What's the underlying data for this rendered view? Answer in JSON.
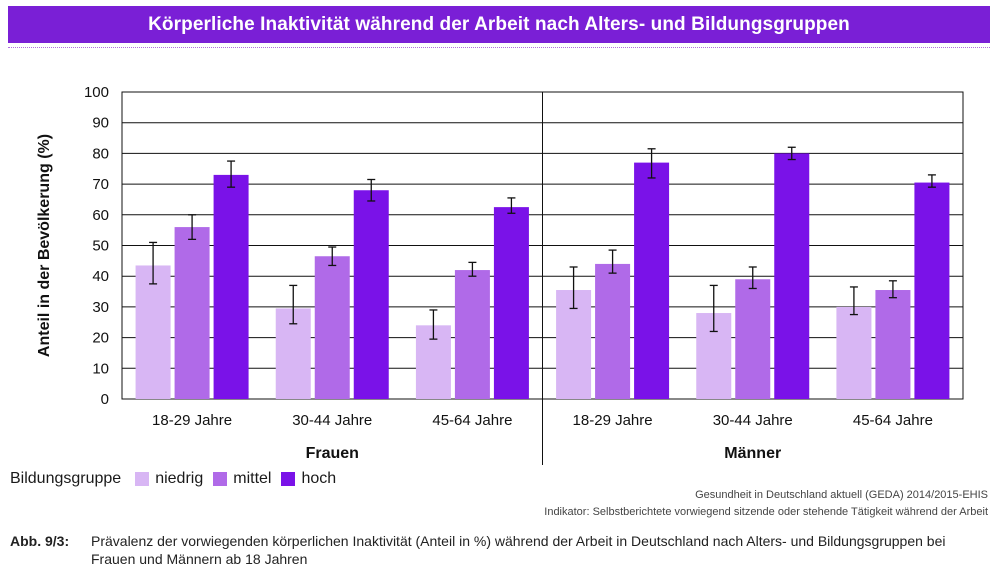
{
  "title": "Körperliche Inaktivität während der Arbeit nach Alters- und Bildungsgruppen",
  "chart_data": {
    "type": "bar",
    "ylabel": "Anteil in der Bevölkerung (%)",
    "ylim": [
      0,
      100
    ],
    "yticks": [
      0,
      10,
      20,
      30,
      40,
      50,
      60,
      70,
      80,
      90,
      100
    ],
    "grid": true,
    "groups": [
      {
        "name": "Frauen",
        "categories": [
          "18-29 Jahre",
          "30-44 Jahre",
          "45-64 Jahre"
        ],
        "series": [
          {
            "name": "niedrig",
            "values": [
              43.5,
              29.5,
              24
            ],
            "err_low": [
              37.5,
              24.5,
              19.5
            ],
            "err_high": [
              51,
              37,
              29
            ]
          },
          {
            "name": "mittel",
            "values": [
              56,
              46.5,
              42
            ],
            "err_low": [
              52,
              43.5,
              40
            ],
            "err_high": [
              60,
              49.5,
              44.5
            ]
          },
          {
            "name": "hoch",
            "values": [
              73,
              68,
              62.5
            ],
            "err_low": [
              69,
              64.5,
              60.5
            ],
            "err_high": [
              77.5,
              71.5,
              65.5
            ]
          }
        ]
      },
      {
        "name": "Männer",
        "categories": [
          "18-29 Jahre",
          "30-44 Jahre",
          "45-64 Jahre"
        ],
        "series": [
          {
            "name": "niedrig",
            "values": [
              35.5,
              28,
              30
            ],
            "err_low": [
              29.5,
              22,
              27.5
            ],
            "err_high": [
              43,
              37,
              36.5
            ]
          },
          {
            "name": "mittel",
            "values": [
              44,
              39,
              35.5
            ],
            "err_low": [
              41,
              36,
              33
            ],
            "err_high": [
              48.5,
              43,
              38.5
            ]
          },
          {
            "name": "hoch",
            "values": [
              77,
              80,
              70.5
            ],
            "err_low": [
              72,
              78,
              69
            ],
            "err_high": [
              81.5,
              82,
              73
            ]
          }
        ]
      }
    ],
    "colors": {
      "niedrig": "#d8b6f4",
      "mittel": "#b06ae8",
      "hoch": "#7a12e8"
    }
  },
  "legend": {
    "title": "Bildungsgruppe",
    "items": [
      {
        "label": "niedrig",
        "color": "#d8b6f4"
      },
      {
        "label": "mittel",
        "color": "#b06ae8"
      },
      {
        "label": "hoch",
        "color": "#7a12e8"
      }
    ]
  },
  "source": {
    "line1": "Gesundheit in Deutschland aktuell (GEDA) 2014/2015-EHIS",
    "line2": "Indikator: Selbstberichtete vorwiegend sitzende oder stehende Tätigkeit während der Arbeit"
  },
  "caption": {
    "label": "Abb. 9/3:",
    "text": "Prävalenz der vorwiegenden körperlichen Inaktivität (Anteil in %) während der Arbeit in Deutschland nach Alters- und Bildungsgruppen bei Frauen und Männern ab 18 Jahren"
  }
}
